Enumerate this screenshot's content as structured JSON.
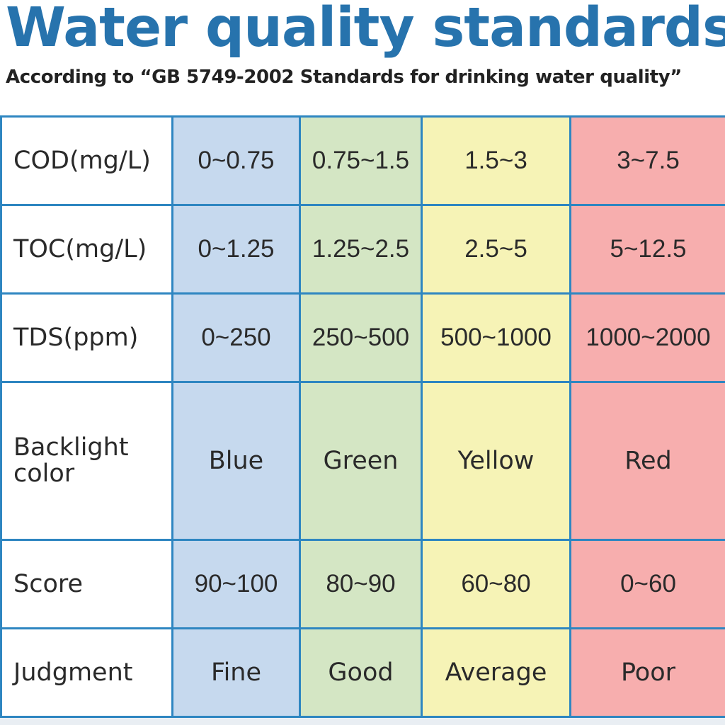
{
  "title": "Water quality standards",
  "subtitle": "According to  “GB 5749-2002 Standards for drinking water quality”",
  "colors": {
    "title": "#2773ad",
    "border": "#2e86c1",
    "blue_column": "#c6d9ee",
    "green_column": "#d4e6c4",
    "yellow_column": "#f6f3b6",
    "red_column": "#f7aeae"
  },
  "rows": [
    {
      "label": "COD(mg/L)",
      "values": [
        "0~0.75",
        "0.75~1.5",
        "1.5~3",
        "3~7.5"
      ]
    },
    {
      "label": "TOC(mg/L)",
      "values": [
        "0~1.25",
        "1.25~2.5",
        "2.5~5",
        "5~12.5"
      ]
    },
    {
      "label": "TDS(ppm)",
      "values": [
        "0~250",
        "250~500",
        "500~1000",
        "1000~2000"
      ]
    },
    {
      "label": "Backlight color",
      "values": [
        "Blue",
        "Green",
        "Yellow",
        "Red"
      ]
    },
    {
      "label": "Score",
      "values": [
        "90~100",
        "80~90",
        "60~80",
        "0~60"
      ]
    },
    {
      "label": "Judgment",
      "values": [
        "Fine",
        "Good",
        "Average",
        "Poor"
      ]
    }
  ]
}
